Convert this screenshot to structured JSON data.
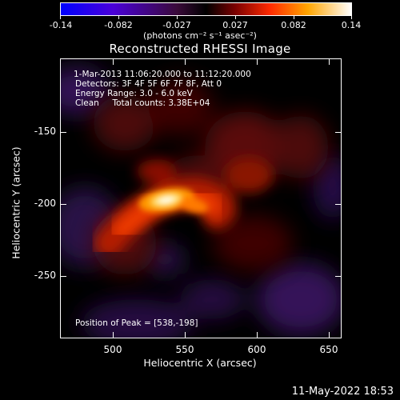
{
  "colorbar": {
    "ticks": [
      "-0.14",
      "-0.082",
      "-0.027",
      "0.027",
      "0.082",
      "0.14"
    ],
    "units": "(photons cm⁻² s⁻¹ asec⁻²)"
  },
  "title": "Reconstructed RHESSI Image",
  "info": {
    "line1": "1-Mar-2013 11:06:20.000 to 11:12:20.000",
    "line2": "Detectors: 3F 4F 5F 6F 7F 8F, Att 0",
    "line3": "Energy Range: 3.0 - 6.0 keV",
    "line4": "Clean     Total counts: 3.38E+04",
    "peak": "Position of Peak = [538,-198]"
  },
  "axes": {
    "xlabel": "Heliocentric X (arcsec)",
    "ylabel": "Heliocentric Y (arcsec)",
    "xticks": [
      "500",
      "550",
      "600",
      "650"
    ],
    "yticks": [
      "-150",
      "-200",
      "-250"
    ]
  },
  "footer": "11-May-2022 18:53",
  "colors": {
    "background": "#000000",
    "text": "#ffffff"
  }
}
